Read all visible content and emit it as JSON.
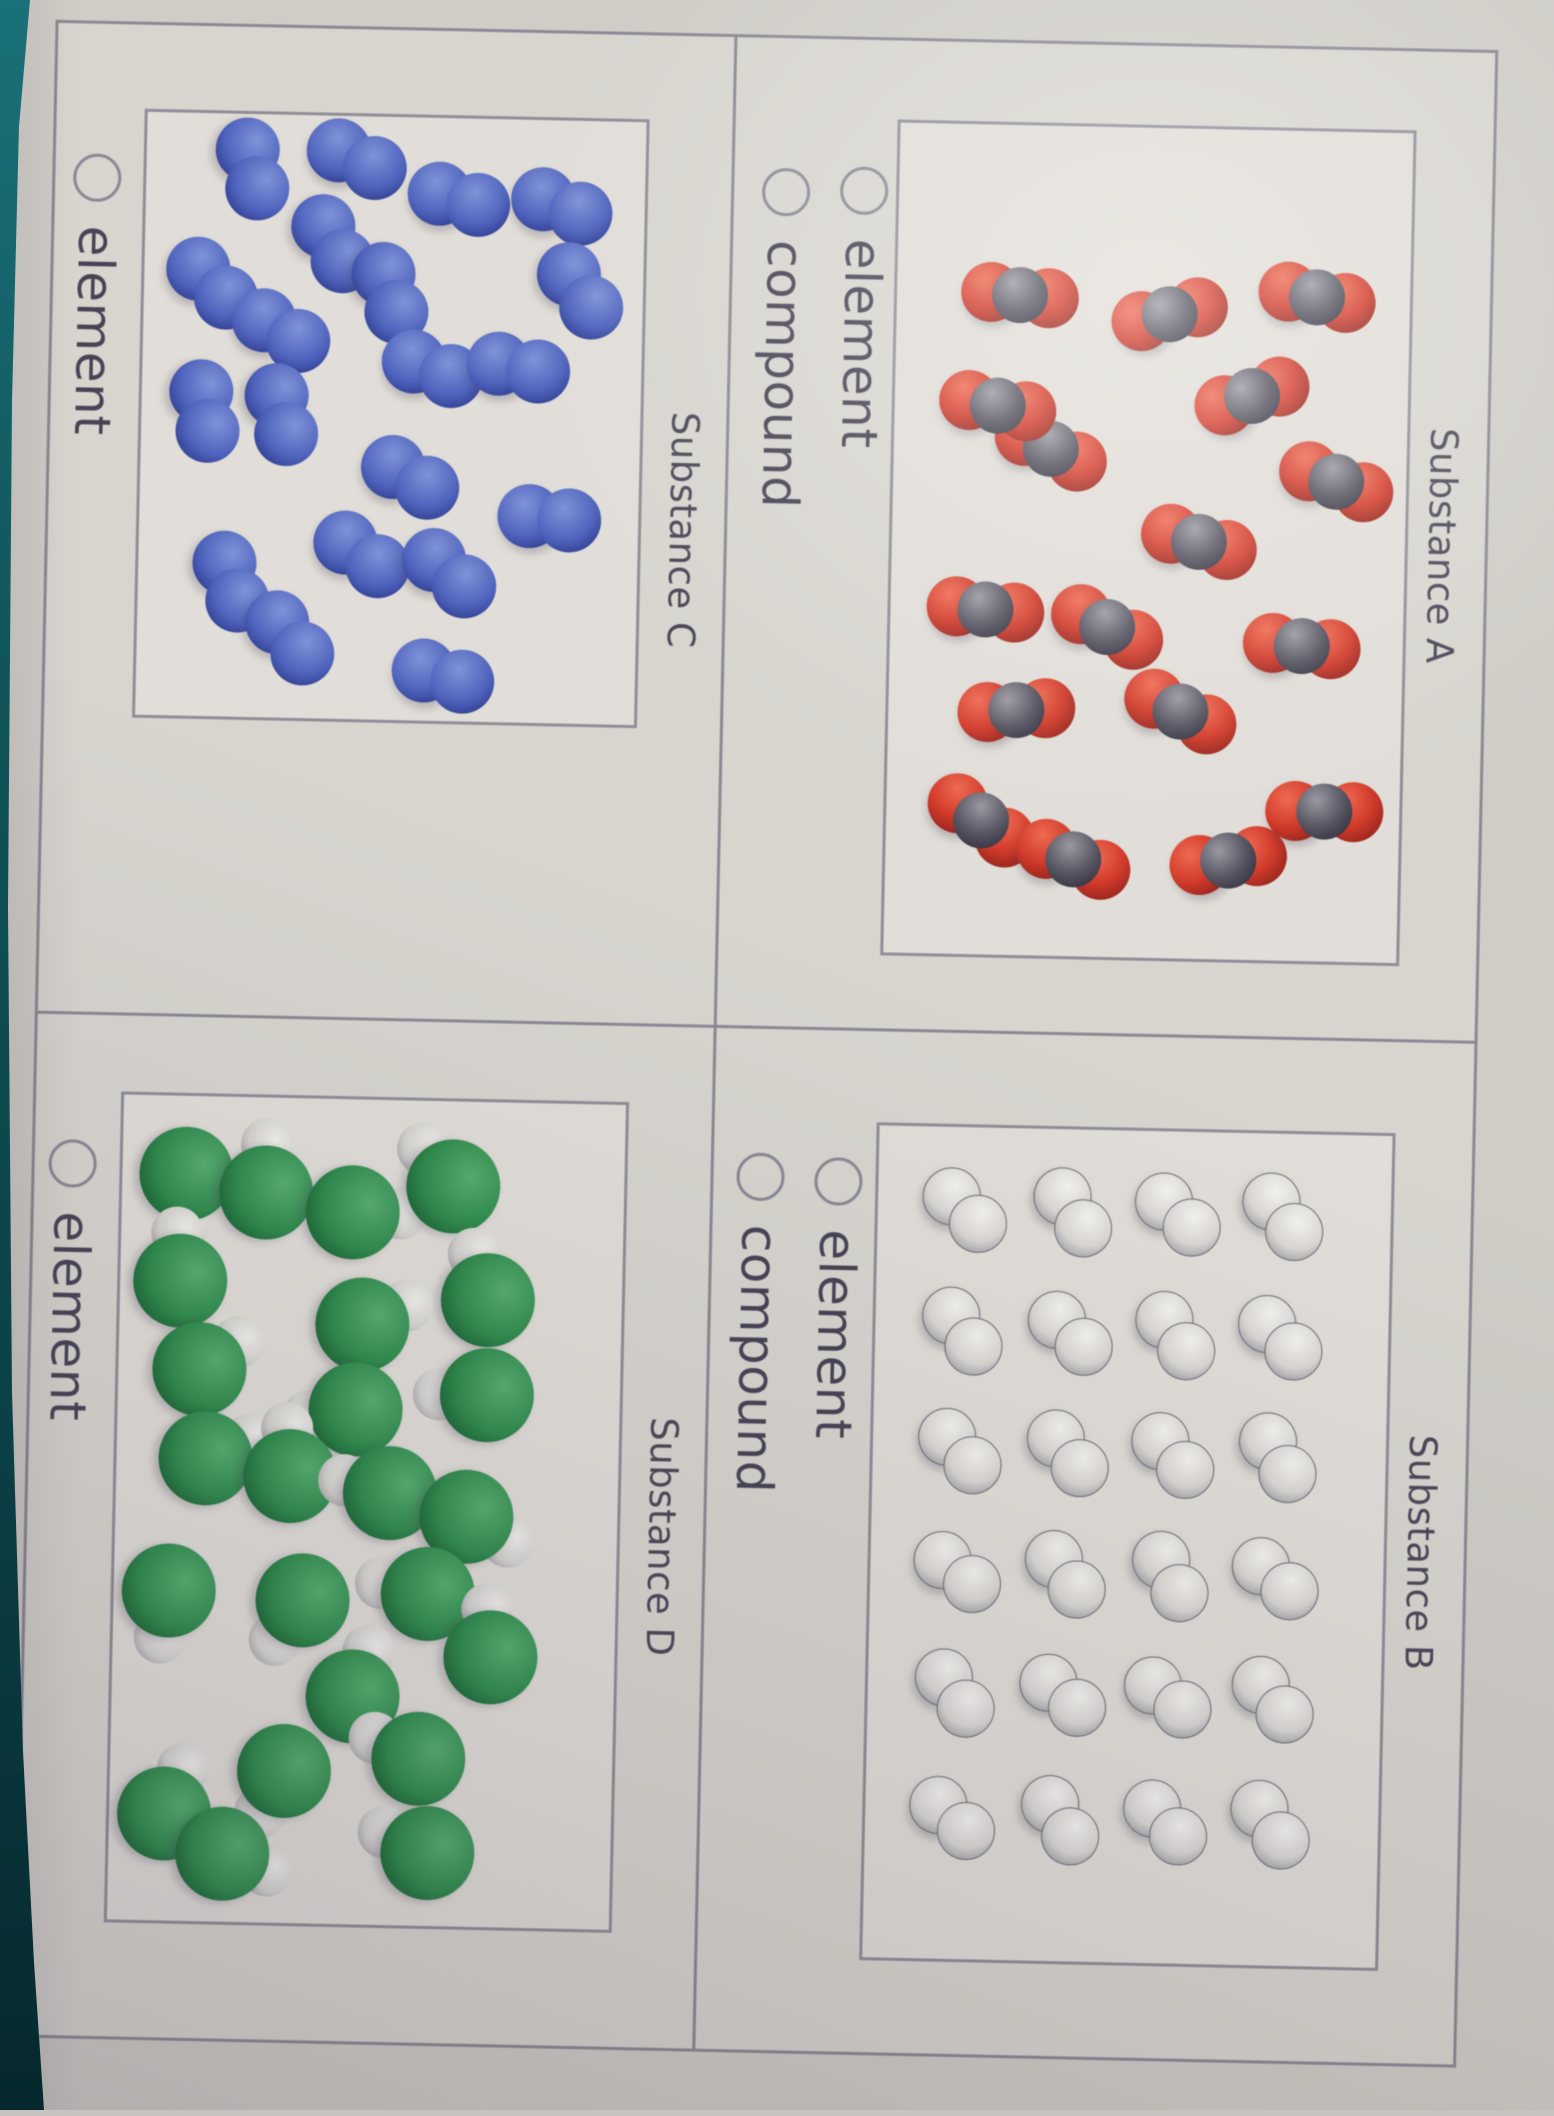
{
  "app": {
    "description": "Chemistry classification quiz photographed sideways: four substance panels with particle diagrams and element/compound radio choices",
    "orientation_deg": 90
  },
  "colors": {
    "background": "#d5d2cc",
    "panel_border": "#8b8894",
    "text": "#4b4656",
    "radio_outline": "#8a8894",
    "screen_edge_teal": "#0d4a50",
    "red_atom": "#d23b2b",
    "carbon_atom": "#565460",
    "white_atom": "#e9e7e3",
    "blue_atom": "#4f63bd",
    "green_atom": "#2f8b4d"
  },
  "quadrants": [
    {
      "id": "A",
      "title": "Substance A",
      "molecule_kind": "triatomic red-gray-red (CO2-like)",
      "options": [
        {
          "label": "element",
          "selected": false
        },
        {
          "label": "compound",
          "selected": false
        }
      ],
      "molecules": {
        "type": "co2",
        "count": 17,
        "items": [
          [
            20.5,
            76,
            -85
          ],
          [
            22.4,
            46.8,
            -105
          ],
          [
            20,
            18.1,
            -80
          ],
          [
            32,
            30.4,
            -110
          ],
          [
            38.9,
            69.4,
            -65
          ],
          [
            42.2,
            13.6,
            -70
          ],
          [
            49.8,
            40.2,
            -75
          ],
          [
            58.4,
            81.5,
            -85
          ],
          [
            60.2,
            57.7,
            -65
          ],
          [
            62,
            19.7,
            -85
          ],
          [
            70.5,
            75,
            -95
          ],
          [
            70.2,
            43.1,
            -65
          ],
          [
            83.9,
            81.5,
            -55
          ],
          [
            88.3,
            63.4,
            -70
          ],
          [
            88.1,
            33.1,
            -100
          ],
          [
            81.9,
            14.6,
            -90
          ],
          [
            33.9,
            79.9,
            -80
          ]
        ]
      }
    },
    {
      "id": "B",
      "title": "Substance B",
      "molecule_kind": "diatomic white/silver in ordered grid",
      "options": [
        {
          "label": "element",
          "selected": false
        },
        {
          "label": "compound",
          "selected": false
        }
      ],
      "molecules": {
        "type": "white_grid",
        "count": 24,
        "grid_cols": [
          10,
          24.5,
          39,
          53.5,
          68,
          83
        ],
        "grid_rows": [
          21,
          41.5,
          62,
          83
        ],
        "rotations": [
          -38,
          -45,
          -32,
          -50,
          -40,
          -35,
          -48,
          -36,
          -42,
          -30,
          -52,
          -44,
          -34,
          -46,
          -40,
          -38,
          -50,
          -33,
          -45,
          -37,
          -43,
          -52,
          -36,
          -48
        ]
      }
    },
    {
      "id": "C",
      "title": "Substance C",
      "molecule_kind": "diatomic blue, scattered",
      "options": [
        {
          "label": "element",
          "selected": false
        }
      ],
      "molecules": {
        "type": "blue",
        "count": 20,
        "items": [
          [
            9.1,
            78.8,
            -15
          ],
          [
            7.1,
            57.9,
            -65
          ],
          [
            13.4,
            37.3,
            -75
          ],
          [
            14.3,
            16.6,
            -70
          ],
          [
            21.2,
            62.3,
            -30
          ],
          [
            28.2,
            86.4,
            -45
          ],
          [
            29.2,
            50.7,
            -20
          ],
          [
            28.2,
            12.6,
            -35
          ],
          [
            35.8,
            72.3,
            -60
          ],
          [
            41.6,
            41.9,
            -70
          ],
          [
            41.1,
            24.6,
            -80
          ],
          [
            49.4,
            87.4,
            -10
          ],
          [
            49.8,
            71.9,
            -15
          ],
          [
            59.7,
            45.9,
            -60
          ],
          [
            66,
            17.8,
            -85
          ],
          [
            77.6,
            81.4,
            -20
          ],
          [
            72.6,
            55.3,
            -55
          ],
          [
            75.4,
            37.7,
            -50
          ],
          [
            86.7,
            69.3,
            -40
          ],
          [
            92.5,
            38.5,
            -75
          ]
        ]
      }
    },
    {
      "id": "D",
      "title": "Substance D",
      "molecule_kind": "large green atom with small white atom (HCl-like)",
      "options": [
        {
          "label": "element",
          "selected": false
        }
      ],
      "molecules": {
        "type": "green",
        "count": 24,
        "items": [
          [
            9.5,
            87.3,
            0
          ],
          [
            11.5,
            71.3,
            180
          ],
          [
            13.7,
            54,
            -90
          ],
          [
            10.3,
            34.1,
            140
          ],
          [
            22.4,
            88,
            175
          ],
          [
            24,
            26.7,
            162
          ],
          [
            27.3,
            51.6,
            -115
          ],
          [
            33.1,
            83.9,
            -125
          ],
          [
            35.5,
            26.5,
            90
          ],
          [
            37.6,
            52.6,
            80
          ],
          [
            43.9,
            82.3,
            -115
          ],
          [
            45.8,
            65.3,
            175
          ],
          [
            47.6,
            45.4,
            105
          ],
          [
            50.3,
            30.1,
            -60
          ],
          [
            60,
            89,
            10
          ],
          [
            60.8,
            62.4,
            34
          ],
          [
            59.8,
            37.5,
            102
          ],
          [
            67.3,
            24.7,
            175
          ],
          [
            72.4,
            52,
            -162
          ],
          [
            79.8,
            38.6,
            114
          ],
          [
            81.6,
            65.3,
            28
          ],
          [
            87,
            89,
            -158
          ],
          [
            91.8,
            77.3,
            -71
          ],
          [
            91.2,
            36.5,
            115
          ]
        ]
      }
    }
  ]
}
